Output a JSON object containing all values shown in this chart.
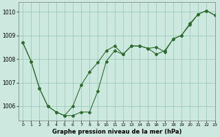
{
  "title": "Graphe pression niveau de la mer (hPa)",
  "background_color": "#cce8df",
  "grid_color": "#99ccbb",
  "line_color": "#2d6a2d",
  "xlim": [
    -0.5,
    23
  ],
  "ylim": [
    1005.4,
    1010.4
  ],
  "yticks": [
    1006,
    1007,
    1008,
    1009,
    1010
  ],
  "xticks": [
    0,
    1,
    2,
    3,
    4,
    5,
    6,
    7,
    8,
    9,
    10,
    11,
    12,
    13,
    14,
    15,
    16,
    17,
    18,
    19,
    20,
    21,
    22,
    23
  ],
  "line1_x": [
    0,
    1,
    2,
    3,
    4,
    5,
    6,
    7,
    8,
    9,
    10,
    11,
    12,
    13,
    14,
    15,
    16,
    17,
    18,
    19,
    20,
    21,
    22,
    23
  ],
  "line1_y": [
    1008.7,
    1007.9,
    1006.75,
    1006.0,
    1005.75,
    1005.6,
    1005.6,
    1005.75,
    1005.75,
    1006.65,
    1007.9,
    1008.35,
    1008.2,
    1008.55,
    1008.55,
    1008.45,
    1008.5,
    1008.3,
    1008.85,
    1009.0,
    1009.45,
    1009.9,
    1010.05,
    1009.85
  ],
  "line2_x": [
    0,
    1,
    2,
    3,
    4,
    5,
    6,
    7,
    8,
    9,
    10,
    11,
    12,
    13,
    14,
    15,
    16,
    17,
    18,
    19,
    20,
    21,
    22,
    23
  ],
  "line2_y": [
    1008.7,
    1007.9,
    1006.75,
    1006.0,
    1005.75,
    1005.6,
    1006.0,
    1006.9,
    1007.45,
    1007.85,
    1008.35,
    1008.55,
    1008.2,
    1008.55,
    1008.55,
    1008.45,
    1008.2,
    1008.35,
    1008.85,
    1009.0,
    1009.5,
    1009.9,
    1010.05,
    1009.85
  ],
  "figsize": [
    3.2,
    2.0
  ],
  "dpi": 100
}
